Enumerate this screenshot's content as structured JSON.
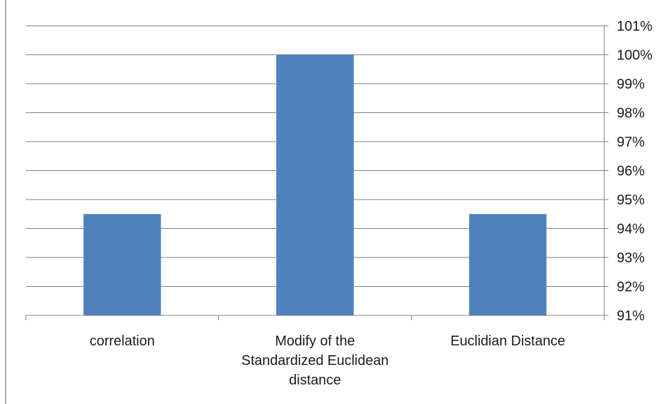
{
  "chart_data": {
    "type": "bar",
    "categories": [
      [
        "correlation"
      ],
      [
        "Modify  of the",
        "Standardized Euclidean",
        "distance"
      ],
      [
        "Euclidian Distance"
      ]
    ],
    "values": [
      94.5,
      100,
      94.5
    ],
    "value_unit": "%",
    "yaxis_position": "right",
    "ylim": [
      91,
      101
    ],
    "yticks": [
      "91%",
      "92%",
      "93%",
      "94%",
      "95%",
      "96%",
      "97%",
      "98%",
      "99%",
      "100%",
      "101%"
    ],
    "grid": true,
    "legend": "none",
    "bar_color": "#4f81bd",
    "grid_color": "#7f7f7f"
  }
}
